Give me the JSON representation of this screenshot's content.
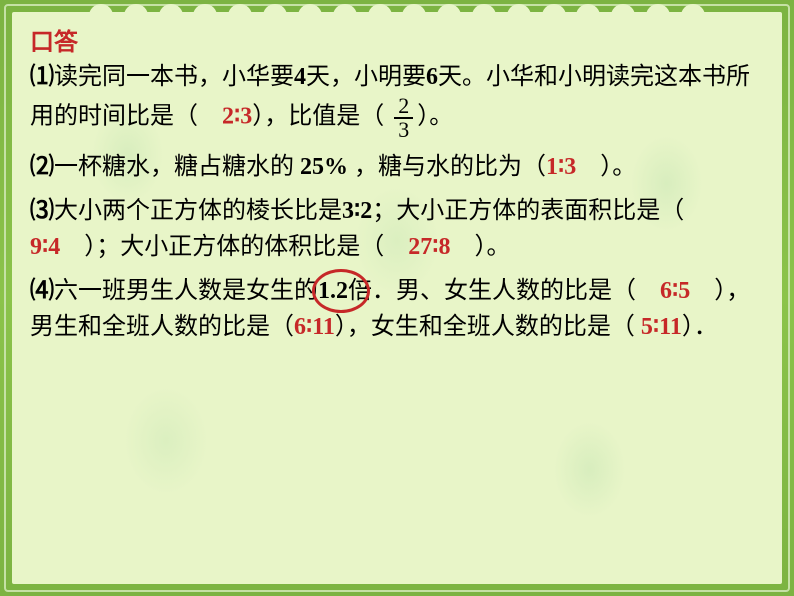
{
  "colors": {
    "frame_outer": "#7cb342",
    "frame_inner_border": "#c5e1a5",
    "content_bg": "#e8f5c8",
    "text_black": "#000000",
    "text_red": "#c62828"
  },
  "title": "口答",
  "problems": {
    "p1": {
      "num": "⑴",
      "text_a": "读完同一本书，小华要",
      "val_a": "4",
      "text_b": "天，小明要",
      "val_b": "6",
      "text_c": "天。小华和小明读完这本书所用的时间比是（　",
      "ans1": "2∶3",
      "text_d": "），比值是（",
      "frac_top": "2",
      "frac_bot": "3",
      "text_e": "）。"
    },
    "p2": {
      "num": "⑵",
      "text_a": "一杯糖水，糖占糖水的 ",
      "val_a": "25%",
      "text_b": " ，糖与水的比为（",
      "ans1": "1∶3",
      "text_c": "　）。"
    },
    "p3": {
      "num": "⑶",
      "text_a": "大小两个正方体的棱长比是",
      "val_a": "3∶2",
      "text_b": "；大小正方体的表面积比是（　",
      "ans1": "9∶4",
      "text_c": "　）；大小正方体的体积比是（　",
      "ans2": "27∶8",
      "text_d": "　）。"
    },
    "p4": {
      "num": "⑷",
      "text_a": "六一班男生人数是女生的",
      "val_a": "1.2",
      "text_b": "倍．男、女生人数的比是（　",
      "ans1": "6∶5",
      "text_c": "　），男生和全班人数的比是（",
      "ans2": "6∶11",
      "text_d": "），女生和全班人数的比是（ ",
      "ans3": "5∶11",
      "text_e": "）．"
    }
  }
}
